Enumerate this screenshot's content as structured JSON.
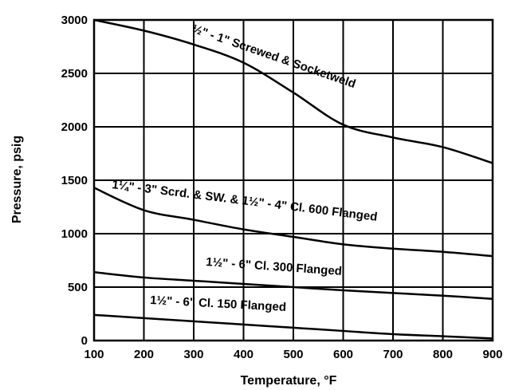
{
  "chart_data": {
    "type": "line",
    "title": "",
    "xlabel": "Temperature, °F",
    "ylabel": "Pressure, psig",
    "xlim": [
      100,
      900
    ],
    "ylim": [
      0,
      3000
    ],
    "xticks": [
      100,
      200,
      300,
      400,
      500,
      600,
      700,
      800,
      900
    ],
    "yticks": [
      0,
      500,
      1000,
      1500,
      2000,
      2500,
      3000
    ],
    "grid": true,
    "legend": "none",
    "series": [
      {
        "name": "½\" - 1\" Screwed & Socketweld",
        "x": [
          100,
          200,
          300,
          400,
          500,
          600,
          700,
          800,
          900
        ],
        "y": [
          3000,
          2900,
          2770,
          2600,
          2320,
          2020,
          1900,
          1810,
          1660
        ]
      },
      {
        "name": "1¼\" - 3\" Scrd. & SW. & 1½\" - 4\" Cl. 600 Flanged",
        "x": [
          100,
          200,
          300,
          400,
          500,
          600,
          700,
          800,
          900
        ],
        "y": [
          1430,
          1220,
          1130,
          1040,
          970,
          900,
          860,
          830,
          790
        ]
      },
      {
        "name": "1½\" - 6\" Cl. 300 Flanged",
        "x": [
          100,
          200,
          300,
          400,
          500,
          600,
          700,
          800,
          900
        ],
        "y": [
          640,
          590,
          560,
          530,
          500,
          470,
          445,
          420,
          390
        ]
      },
      {
        "name": "1½\" - 6\" Cl. 150 Flanged",
        "x": [
          100,
          200,
          300,
          400,
          500,
          600,
          700,
          800,
          900
        ],
        "y": [
          240,
          210,
          180,
          150,
          120,
          90,
          60,
          40,
          20
        ]
      }
    ]
  }
}
